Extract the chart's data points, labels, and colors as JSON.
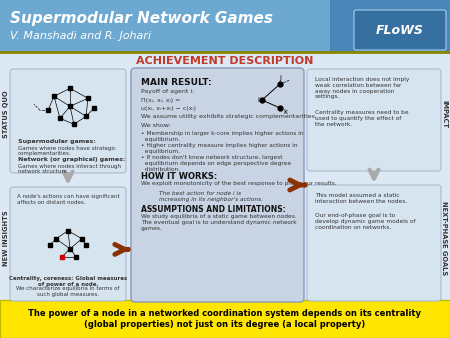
{
  "title": "Supermodular Network Games",
  "subtitle": "V. Manshadi and R. Johari",
  "header_bg_left": "#6BA3CC",
  "header_bg_right": "#4A86B8",
  "header_text_color": "#FFFFFF",
  "achievement_title": "ACHIEVEMENT DESCRIPTION",
  "achievement_title_color": "#C0392B",
  "main_result_title": "MAIN RESULT:",
  "center_box_bg": "#C8D4E4",
  "status_quo_label": "STATUS QUO",
  "new_insights_label": "NEW INSIGHTS",
  "impact_label": "IMPACT",
  "next_phase_label": "NEXT-PHASE GOALS",
  "left_box_bg": "#D6E4F0",
  "right_box_bg": "#D6E4F0",
  "left_top_text_title1": "Supermodular games:",
  "left_top_text_body1": "Games where nodes have strategic\ncomplementarities.",
  "left_top_text_title2": "Network (or graphical) games:",
  "left_top_text_body2": "Games where nodes interact through\nnetwork structure.",
  "left_bottom_text_head": "A node's actions can have significant\naffects on distant nodes.",
  "left_bottom_text_foot1": "Centrality, coreness: Global measures\nof power of a node.",
  "left_bottom_text_foot2": "We characterize equilibria in terms of\nsuch global measures.",
  "right_top_text1": "Local interaction does not imply\nweak correlation between far\naway nodes in cooperation\nsettings.",
  "right_top_text2": "Centrality measures need to be\nused to quantify the effect of\nthe network.",
  "right_bottom_text1": "This model assumed a static\ninteraction between the nodes.",
  "right_bottom_text2": "Our end-of-phase goal is to\ndevelop dynamic game models of\ncoordination on networks.",
  "footer_bg": "#FFE600",
  "footer_text": "The power of a node in a networked coordination system depends on its centrality\n(global properties) not just on its degree (a local property)",
  "footer_text_color": "#000000",
  "dark_arrow_color": "#8B3000",
  "gray_arrow_color": "#AAAAAA",
  "flows_text": "FLoWS",
  "body_bg": "#DCE8F4",
  "header_separator_color": "#888800"
}
